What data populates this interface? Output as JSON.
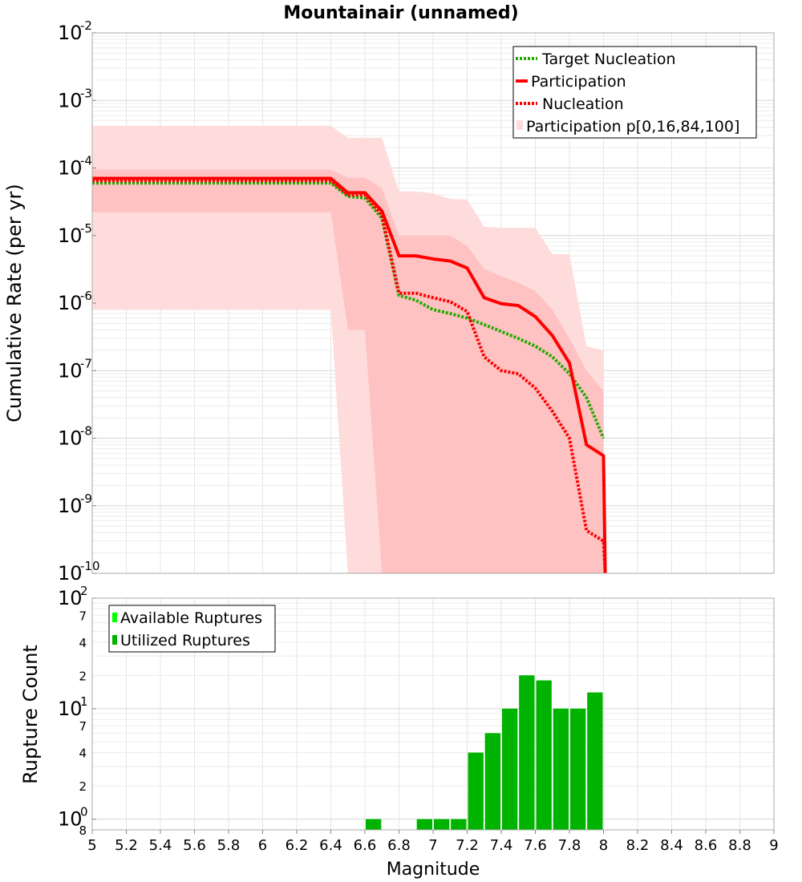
{
  "chart_data": [
    {
      "type": "line",
      "title": "Mountainair (unnamed)",
      "xlabel": "",
      "ylabel": "Cumulative Rate (per yr)",
      "yscale": "log",
      "xlim": [
        5,
        9
      ],
      "ylim": [
        1e-10,
        0.01
      ],
      "y_tick_base": "10",
      "y_tick_exponents": [
        "-10",
        "-9",
        "-8",
        "-7",
        "-6",
        "-5",
        "-4",
        "-3",
        "-2"
      ],
      "legend_position": "top-right",
      "legend": [
        "Target Nucleation",
        "Participation",
        "Nucleation",
        "Participation p[0,16,84,100]"
      ],
      "series": [
        {
          "name": "Target Nucleation",
          "color": "#22aa00",
          "style": "dotted",
          "x": [
            5.0,
            6.4,
            6.5,
            6.6,
            6.7,
            6.8,
            6.9,
            7.0,
            7.1,
            7.2,
            7.3,
            7.4,
            7.5,
            7.6,
            7.7,
            7.8,
            7.9,
            8.0
          ],
          "y": [
            6e-05,
            6e-05,
            3.8e-05,
            3.6e-05,
            1.8e-05,
            1.3e-06,
            1.1e-06,
            8e-07,
            7e-07,
            6e-07,
            4.8e-07,
            3.8e-07,
            3e-07,
            2.3e-07,
            1.6e-07,
            9e-08,
            4e-08,
            1e-08
          ]
        },
        {
          "name": "Participation",
          "color": "#ff0000",
          "style": "solid",
          "x": [
            5.0,
            6.4,
            6.5,
            6.6,
            6.7,
            6.8,
            6.9,
            7.0,
            7.1,
            7.2,
            7.3,
            7.4,
            7.5,
            7.6,
            7.7,
            7.8,
            7.9,
            8.0,
            8.01
          ],
          "y": [
            7e-05,
            7e-05,
            4.3e-05,
            4.3e-05,
            2.3e-05,
            5e-06,
            5e-06,
            4.5e-06,
            4.2e-06,
            3.3e-06,
            1.2e-06,
            9.8e-07,
            9.2e-07,
            6.3e-07,
            3.3e-07,
            1.3e-07,
            8e-09,
            5.5e-09,
            1e-10
          ]
        },
        {
          "name": "Nucleation",
          "color": "#ff0000",
          "style": "dotted",
          "x": [
            5.0,
            6.4,
            6.5,
            6.6,
            6.7,
            6.8,
            6.9,
            7.0,
            7.1,
            7.2,
            7.3,
            7.4,
            7.5,
            7.6,
            7.7,
            7.8,
            7.9,
            8.0,
            8.01
          ],
          "y": [
            6.5e-05,
            6.5e-05,
            4e-05,
            4e-05,
            2e-05,
            1.4e-06,
            1.4e-06,
            1.2e-06,
            1.05e-06,
            7.5e-07,
            1.6e-07,
            1e-07,
            9e-08,
            5.5e-08,
            2.5e-08,
            1e-08,
            4.3e-10,
            3e-10,
            1e-10
          ]
        }
      ],
      "bands": [
        {
          "name": "Participation p[0,16,84,100]",
          "kind": "outer",
          "color": "#ffdcdc",
          "x": [
            5.0,
            6.4,
            6.5,
            6.6,
            6.7,
            6.8,
            6.9,
            7.0,
            7.1,
            7.2,
            7.3,
            7.4,
            7.5,
            7.6,
            7.7,
            7.8,
            7.9,
            8.0
          ],
          "lower": [
            8e-07,
            8e-07,
            1e-10,
            1e-10,
            1e-10,
            1e-10,
            1e-10,
            1e-10,
            1e-10,
            1e-10,
            1e-10,
            1e-10,
            1e-10,
            1e-10,
            1e-10,
            1e-10,
            1e-10,
            1e-10
          ],
          "upper": [
            0.00042,
            0.00042,
            0.00028,
            0.00028,
            0.00028,
            4.5e-05,
            4.5e-05,
            4.2e-05,
            3.5e-05,
            3.4e-05,
            1.35e-05,
            1.3e-05,
            1.3e-05,
            1.3e-05,
            5.3e-06,
            5.3e-06,
            2.3e-07,
            2e-07
          ]
        },
        {
          "name": "Participation p[0,16,84,100]",
          "kind": "inner",
          "color": "#ffc2c2",
          "x": [
            5.0,
            6.4,
            6.5,
            6.6,
            6.7,
            6.8,
            6.9,
            7.0,
            7.1,
            7.2,
            7.3,
            7.4,
            7.5,
            7.6,
            7.7,
            7.8,
            7.9,
            8.0
          ],
          "lower": [
            2.2e-05,
            2.2e-05,
            4e-07,
            4e-07,
            1e-10,
            1e-10,
            1e-10,
            1e-10,
            1e-10,
            1e-10,
            1e-10,
            1e-10,
            1e-10,
            1e-10,
            1e-10,
            1e-10,
            1e-10,
            1e-10
          ],
          "upper": [
            9.5e-05,
            9.5e-05,
            7.2e-05,
            7.2e-05,
            5e-05,
            1e-05,
            1e-05,
            1e-05,
            1e-05,
            7e-06,
            3.2e-06,
            2.5e-06,
            2e-06,
            1.5e-06,
            8e-07,
            3e-07,
            1e-07,
            5e-08
          ]
        }
      ]
    },
    {
      "type": "bar",
      "title": "",
      "xlabel": "Magnitude",
      "ylabel": "Rupture Count",
      "yscale": "log",
      "xlim": [
        5,
        9
      ],
      "ylim": [
        0.8,
        100
      ],
      "x_ticks": [
        "5",
        "5.2",
        "5.4",
        "5.6",
        "5.8",
        "6",
        "6.2",
        "6.4",
        "6.6",
        "6.8",
        "7",
        "7.2",
        "7.4",
        "7.6",
        "7.8",
        "8",
        "8.2",
        "8.4",
        "8.6",
        "8.8",
        "9"
      ],
      "y_major_ticks": [
        {
          "value": 1,
          "base": "10",
          "exp": "0"
        },
        {
          "value": 10,
          "base": "10",
          "exp": "1"
        },
        {
          "value": 100,
          "base": "10",
          "exp": "2"
        }
      ],
      "y_minor_ticks": [
        {
          "value": 0.8,
          "label": "8"
        },
        {
          "value": 2,
          "label": "2"
        },
        {
          "value": 4,
          "label": "4"
        },
        {
          "value": 7,
          "label": "7"
        },
        {
          "value": 20,
          "label": "2"
        },
        {
          "value": 40,
          "label": "4"
        },
        {
          "value": 70,
          "label": "7"
        }
      ],
      "legend_position": "top-left",
      "legend": [
        "Available Ruptures",
        "Utilized Ruptures"
      ],
      "series": [
        {
          "name": "Available Ruptures",
          "color": "#00ff00",
          "x": [
            6.6,
            6.9,
            7.0,
            7.1,
            7.2,
            7.3,
            7.4,
            7.5,
            7.6,
            7.7,
            7.8,
            7.9
          ],
          "values": [
            1,
            1,
            1,
            1,
            4,
            6,
            10,
            20,
            18,
            10,
            10,
            14
          ]
        },
        {
          "name": "Utilized Ruptures",
          "color": "#00b300",
          "x": [
            6.6,
            6.9,
            7.0,
            7.1,
            7.2,
            7.3,
            7.4,
            7.5,
            7.6,
            7.7,
            7.8,
            7.9
          ],
          "values": [
            1,
            1,
            1,
            1,
            4,
            6,
            10,
            20,
            18,
            10,
            10,
            14
          ]
        }
      ]
    }
  ]
}
